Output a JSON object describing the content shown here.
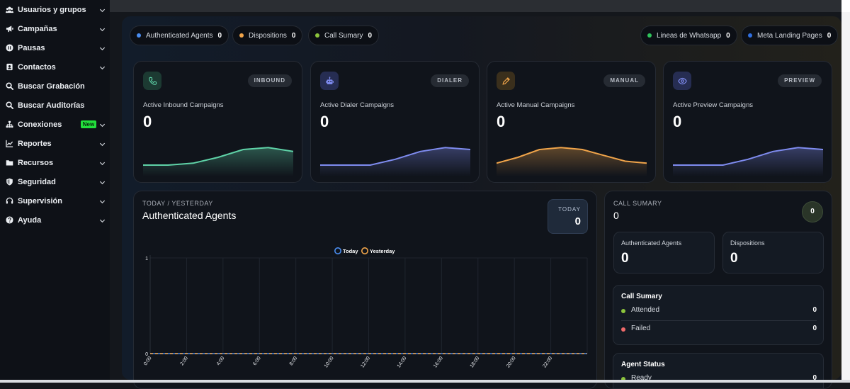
{
  "sidebar": {
    "items": [
      {
        "label": "Usuarios y grupos",
        "icon": "users-icon",
        "chevron": true
      },
      {
        "label": "Campañas",
        "icon": "megaphone-icon",
        "chevron": true
      },
      {
        "label": "Pausas",
        "icon": "pause-icon",
        "chevron": true
      },
      {
        "label": "Contactos",
        "icon": "contacts-icon",
        "chevron": true
      },
      {
        "label": "Buscar Grabación",
        "icon": "search-icon",
        "chevron": false
      },
      {
        "label": "Buscar Auditorías",
        "icon": "search-icon",
        "chevron": false
      },
      {
        "label": "Conexiones",
        "icon": "network-icon",
        "chevron": true,
        "badge": "New"
      },
      {
        "label": "Reportes",
        "icon": "chart-icon",
        "chevron": true
      },
      {
        "label": "Recursos",
        "icon": "folder-icon",
        "chevron": true
      },
      {
        "label": "Seguridad",
        "icon": "shield-icon",
        "chevron": true
      },
      {
        "label": "Supervisión",
        "icon": "headset-icon",
        "chevron": true
      },
      {
        "label": "Ayuda",
        "icon": "help-icon",
        "chevron": true
      }
    ]
  },
  "stats_left": [
    {
      "label": "Authenticated Agents",
      "value": "0",
      "color": "#4a8df0"
    },
    {
      "label": "Dispositions",
      "value": "0",
      "color": "#f0a44a"
    },
    {
      "label": "Call Sumary",
      "value": "0",
      "color": "#8cc43c"
    }
  ],
  "stats_right": [
    {
      "label": "Lineas de Whatsapp",
      "value": "0",
      "color": "#2fc25b"
    },
    {
      "label": "Meta Landing Pages",
      "value": "0",
      "color": "#2f6fe0"
    }
  ],
  "campaign_cards": [
    {
      "tag": "INBOUND",
      "title": "Active Inbound Campaigns",
      "value": "0",
      "icon": "phone-icon",
      "color": "#5fd3a8",
      "icon_bg": "#1c3a32",
      "trend": [
        0,
        0,
        0.05,
        0.2,
        0.4,
        0.45,
        0.35
      ]
    },
    {
      "tag": "DIALER",
      "title": "Active Dialer Campaigns",
      "value": "0",
      "icon": "robot-icon",
      "color": "#7f8cf0",
      "icon_bg": "#262d52",
      "trend": [
        0,
        0,
        0,
        0.15,
        0.35,
        0.45,
        0.4
      ]
    },
    {
      "tag": "MANUAL",
      "title": "Active Manual Campaigns",
      "value": "0",
      "icon": "pencil-icon",
      "color": "#f0a44a",
      "icon_bg": "#3a2f1c",
      "trend": [
        0.05,
        0.2,
        0.4,
        0.45,
        0.4,
        0.25,
        0.1,
        0.05
      ]
    },
    {
      "tag": "PREVIEW",
      "title": "Active Preview Campaigns",
      "value": "0",
      "icon": "eye-icon",
      "color": "#7f8cf0",
      "icon_bg": "#262d52",
      "trend": [
        0,
        0,
        0,
        0.15,
        0.35,
        0.45,
        0.4
      ]
    }
  ],
  "agents_panel": {
    "subtitle": "TODAY / YESTERDAY",
    "title": "Authenticated Agents",
    "today_label": "TODAY",
    "today_value": "0"
  },
  "chart_data": {
    "type": "line",
    "title": "Authenticated Agents",
    "x": [
      "0:00",
      "2:00",
      "4:00",
      "6:00",
      "8:00",
      "10:00",
      "12:00",
      "14:00",
      "16:00",
      "18:00",
      "20:00",
      "22:00"
    ],
    "series": [
      {
        "name": "Today",
        "values": [
          0,
          0,
          0,
          0,
          0,
          0,
          0,
          0,
          0,
          0,
          0,
          0
        ],
        "color": "#4a8df0"
      },
      {
        "name": "Yesterday",
        "values": [
          0,
          0,
          0,
          0,
          0,
          0,
          0,
          0,
          0,
          0,
          0,
          0
        ],
        "color": "#f0a44a"
      }
    ],
    "ylim": [
      0,
      1
    ],
    "yticks": [
      "0",
      "1"
    ],
    "legend": "top-center",
    "grid": true
  },
  "call_summary": {
    "subtitle": "CALL SUMARY",
    "value": "0",
    "badge": "0",
    "mini": [
      {
        "label": "Authenticated Agents",
        "value": "0"
      },
      {
        "label": "Dispositions",
        "value": "0"
      }
    ],
    "summary_title": "Call Sumary",
    "summary_rows": [
      {
        "label": "Attended",
        "value": "0",
        "color": "#8cc43c"
      },
      {
        "label": "Failed",
        "value": "0",
        "color": "#f06a6a"
      }
    ],
    "agent_title": "Agent Status",
    "agent_rows": [
      {
        "label": "Ready",
        "value": "0",
        "color": "#8cc43c"
      }
    ]
  }
}
